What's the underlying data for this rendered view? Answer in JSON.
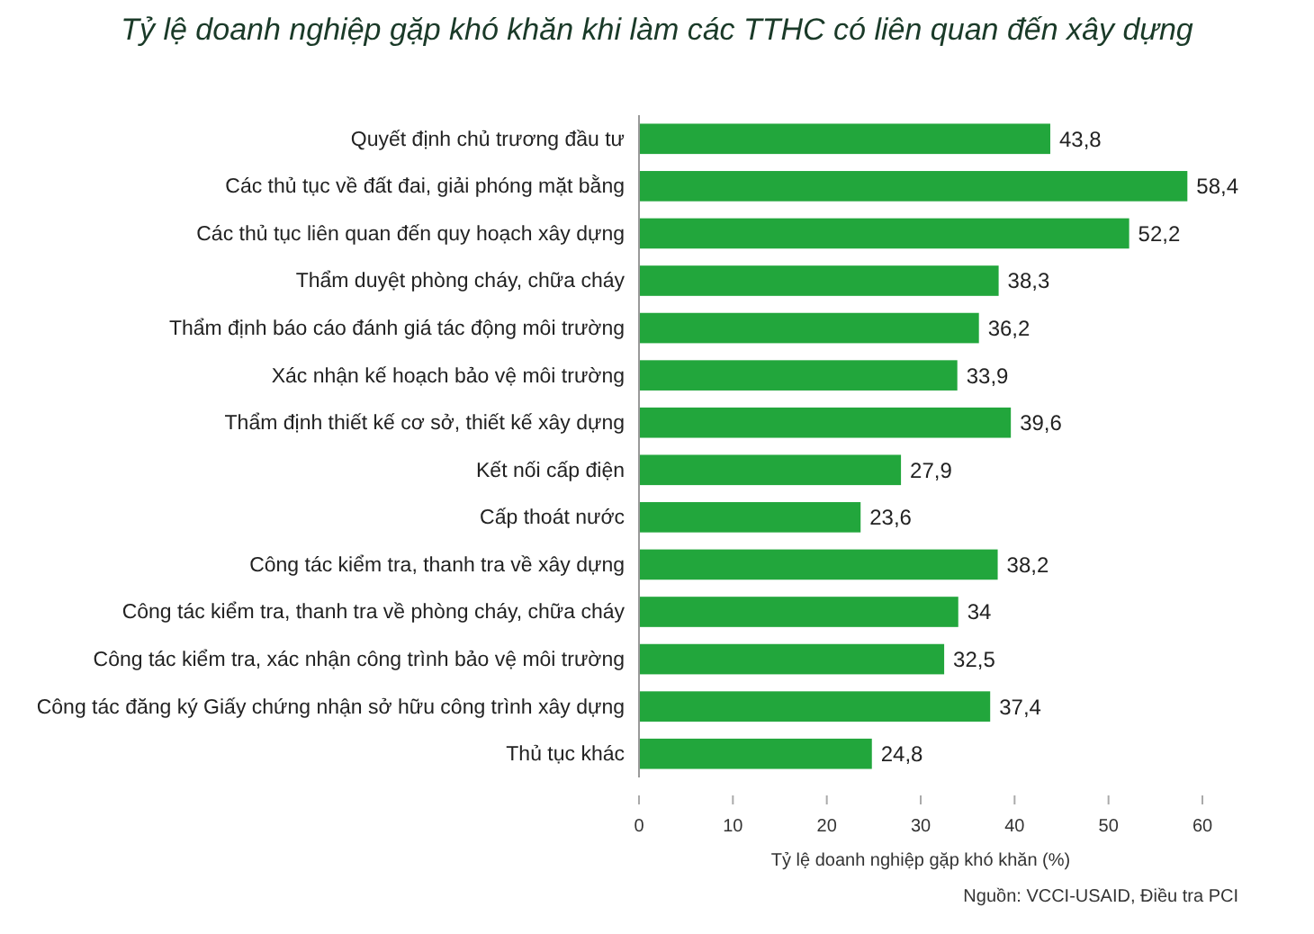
{
  "chart_data": {
    "type": "bar",
    "orientation": "horizontal",
    "title": "Tỷ lệ doanh nghiệp gặp khó khăn khi làm các TTHC có liên quan đến xây dựng",
    "xlabel": "Tỷ lệ doanh nghiệp gặp khó khăn (%)",
    "annotations": [
      "Nguồn: VCCI-USAID, Điều tra PCI"
    ],
    "categories": [
      "Quyết định chủ trương đầu tư",
      "Các thủ tục về đất đai, giải phóng mặt bằng",
      "Các thủ tục liên quan đến quy hoạch xây dựng",
      "Thẩm duyệt phòng cháy, chữa cháy",
      "Thẩm định báo cáo đánh giá tác động môi trường",
      "Xác nhận kế hoạch bảo vệ môi trường",
      "Thẩm định thiết kế cơ sở, thiết kế xây dựng",
      "Kết nối cấp điện",
      "Cấp thoát nước",
      "Công tác kiểm tra, thanh tra về xây dựng",
      "Công tác kiểm tra, thanh tra về phòng cháy, chữa cháy",
      "Công tác kiểm tra, xác nhận công trình bảo vệ môi trường",
      "Công tác đăng ký Giấy chứng nhận sở hữu công trình xây dựng",
      "Thủ tục khác"
    ],
    "values": [
      43.8,
      58.4,
      52.2,
      38.3,
      36.2,
      33.9,
      39.6,
      27.9,
      23.6,
      38.2,
      34,
      32.5,
      37.4,
      24.8
    ],
    "value_labels": [
      "43,8",
      "58,4",
      "52,2",
      "38,3",
      "36,2",
      "33,9",
      "39,6",
      "27,9",
      "23,6",
      "38,2",
      "34",
      "32,5",
      "37,4",
      "24,8"
    ],
    "color": "#22a63c",
    "xlim": [
      0,
      60
    ],
    "xticks": [
      0,
      10,
      20,
      30,
      40,
      50,
      60
    ],
    "grid": false
  }
}
